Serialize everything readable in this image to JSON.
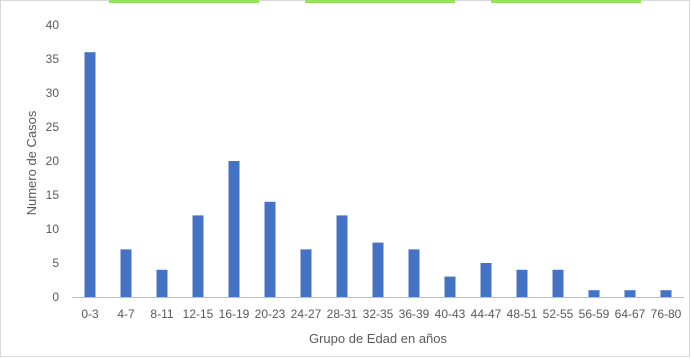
{
  "chart_data": {
    "type": "bar",
    "title": "",
    "xlabel": "Grupo de Edad en años",
    "ylabel": "Numero de Casos",
    "ylim": [
      0,
      40
    ],
    "yticks": [
      0,
      5,
      10,
      15,
      20,
      25,
      30,
      35,
      40
    ],
    "categories": [
      "0-3",
      "4-7",
      "8-11",
      "12-15",
      "16-19",
      "20-23",
      "24-27",
      "28-31",
      "32-35",
      "36-39",
      "40-43",
      "44-47",
      "48-51",
      "52-55",
      "56-59",
      "64-67",
      "76-80"
    ],
    "values": [
      36,
      7,
      4,
      12,
      20,
      14,
      7,
      12,
      8,
      7,
      3,
      5,
      4,
      4,
      1,
      1,
      1
    ],
    "grid": false,
    "legend": "none",
    "colors": {
      "bar": "#4472C4",
      "axis": "#595959",
      "frame": "#D9D9D9",
      "top_strips": "#92E35A"
    }
  }
}
